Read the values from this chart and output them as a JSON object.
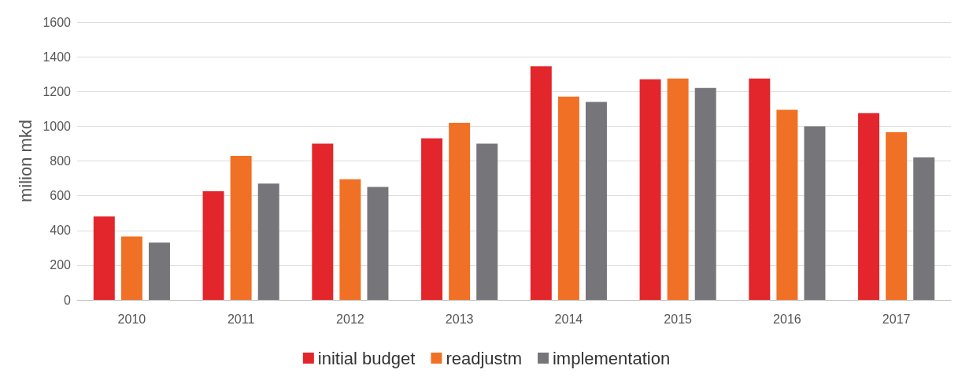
{
  "chart_data": {
    "type": "bar",
    "ylabel": "milion mkd",
    "categories": [
      "2010",
      "2011",
      "2012",
      "2013",
      "2014",
      "2015",
      "2016",
      "2017"
    ],
    "series": [
      {
        "name": "initial budget",
        "color": "#e3262b",
        "values": [
          480,
          625,
          900,
          930,
          1345,
          1270,
          1275,
          1075
        ]
      },
      {
        "name": "readjustm",
        "color": "#f07125",
        "values": [
          365,
          830,
          695,
          1020,
          1170,
          1275,
          1095,
          965
        ]
      },
      {
        "name": "implementation",
        "color": "#76767a",
        "values": [
          330,
          670,
          650,
          900,
          1140,
          1220,
          1000,
          820
        ]
      }
    ],
    "ylim": [
      0,
      1600
    ],
    "yticks": [
      0,
      200,
      400,
      600,
      800,
      1000,
      1200,
      1400,
      1600
    ],
    "grid": "y",
    "legend": "bottom"
  }
}
